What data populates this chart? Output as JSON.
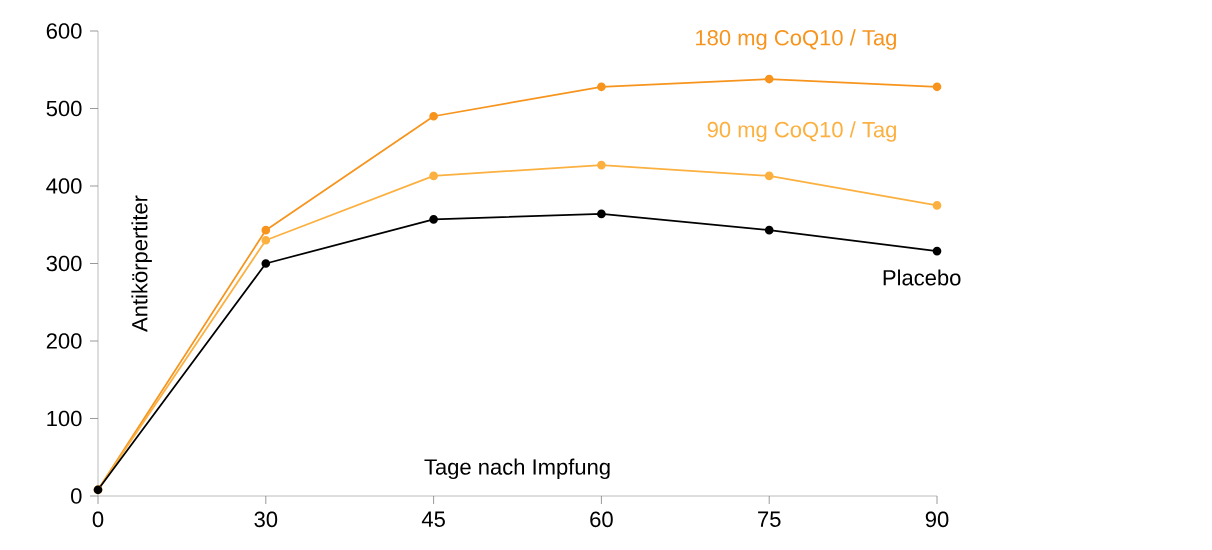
{
  "chart_data": {
    "type": "line",
    "xlabel": "Tage nach Impfung",
    "ylabel": "Antikörpertiter",
    "categories": [
      "0",
      "30",
      "45",
      "60",
      "75",
      "90"
    ],
    "series": [
      {
        "name": "180 mg CoQ10 / Tag",
        "color": "#f7941d",
        "values": [
          8,
          343,
          490,
          528,
          538,
          528
        ]
      },
      {
        "name": "90 mg CoQ10 / Tag",
        "color": "#fbb040",
        "values": [
          8,
          330,
          413,
          427,
          413,
          375
        ]
      },
      {
        "name": "Placebo",
        "color": "#000000",
        "values": [
          8,
          300,
          357,
          364,
          343,
          316
        ]
      }
    ],
    "ylim": [
      0,
      600
    ],
    "yticks": [
      0,
      100,
      200,
      300,
      400,
      500,
      600
    ],
    "marker": "circle",
    "line_style": "solid",
    "legend": false,
    "grid": false
  }
}
